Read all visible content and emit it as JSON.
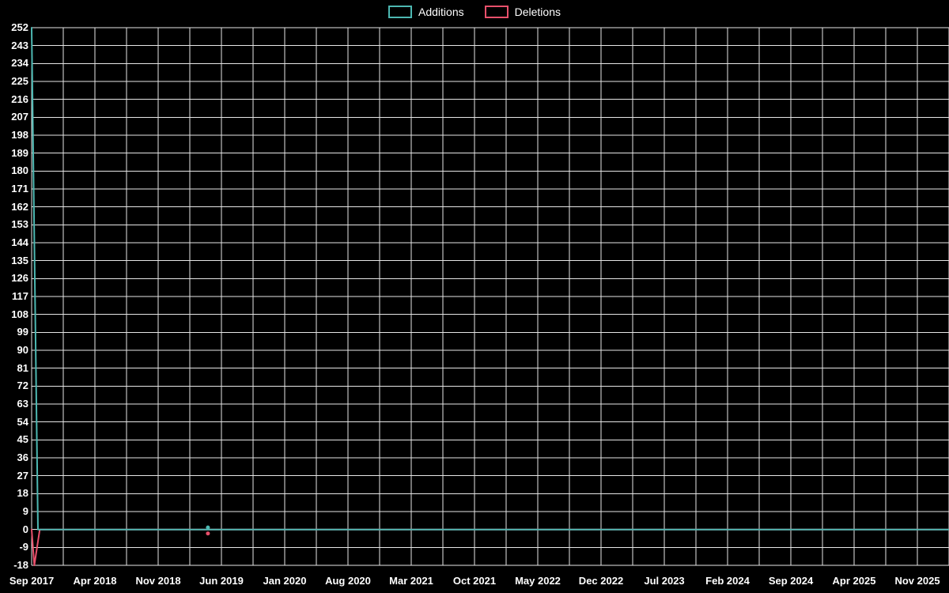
{
  "legend": {
    "additions": "Additions",
    "deletions": "Deletions"
  },
  "colors": {
    "background": "#000000",
    "grid": "#ffffff",
    "text": "#ffffff",
    "additions": "#4db8b2",
    "deletions": "#e8506b"
  },
  "chart_data": {
    "type": "line",
    "title": "",
    "legend_position": "top-center",
    "grid": true,
    "y_axis": {
      "min": -18,
      "max": 252,
      "tick_step": 9,
      "tick_labels": [
        "252",
        "243",
        "234",
        "225",
        "216",
        "207",
        "198",
        "189",
        "180",
        "171",
        "162",
        "153",
        "144",
        "135",
        "126",
        "117",
        "108",
        "99",
        "90",
        "81",
        "72",
        "63",
        "54",
        "45",
        "36",
        "27",
        "18",
        "9",
        "0",
        "-9",
        "-18"
      ]
    },
    "x_axis": {
      "labels": [
        "Sep 2017",
        "Apr 2018",
        "Nov 2018",
        "Jun 2019",
        "Jan 2020",
        "Aug 2020",
        "Mar 2021",
        "Oct 2021",
        "May 2022",
        "Dec 2022",
        "Jul 2023",
        "Feb 2024",
        "Sep 2024",
        "Apr 2025",
        "Nov 2025"
      ],
      "months_per_label": 7
    },
    "series": [
      {
        "name": "Additions",
        "color_key": "additions",
        "points": [
          [
            0,
            252
          ],
          [
            0.7,
            0
          ],
          [
            101,
            0
          ]
        ],
        "markers": [
          [
            19.5,
            1
          ]
        ]
      },
      {
        "name": "Deletions",
        "color_key": "deletions",
        "points": [
          [
            0,
            0
          ],
          [
            0.3,
            -18
          ],
          [
            0.9,
            0
          ],
          [
            101,
            0
          ]
        ],
        "markers": [
          [
            19.5,
            -2
          ]
        ]
      }
    ]
  }
}
